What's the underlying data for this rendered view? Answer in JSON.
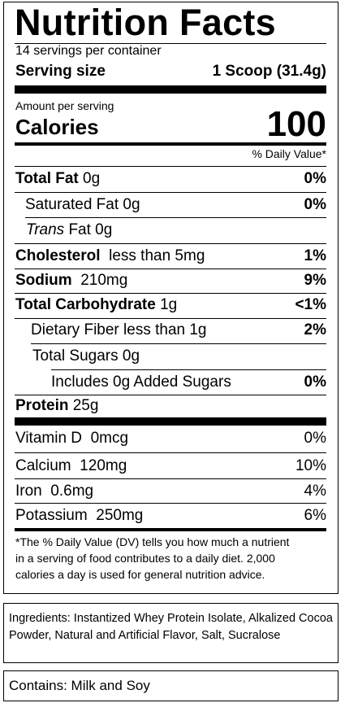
{
  "title": "Nutrition Facts",
  "servings": "14 servings per container",
  "serving_size": {
    "label": "Serving size",
    "value": "1 Scoop (31.4g)"
  },
  "amount_per_serving": "Amount per serving",
  "calories": {
    "label": "Calories",
    "value": "100"
  },
  "dv_header": "% Daily Value*",
  "nutrients": {
    "total_fat": {
      "label": "Total Fat",
      "amount": "0g",
      "dv": "0%"
    },
    "saturated_fat": {
      "label": "Saturated Fat 0g",
      "dv": "0%"
    },
    "trans_fat": {
      "italic": "Trans",
      "rest": " Fat 0g"
    },
    "cholesterol": {
      "label": "Cholesterol",
      "amount": "less than 5mg",
      "dv": "1%"
    },
    "sodium": {
      "label": "Sodium",
      "amount": "210mg",
      "dv": "9%"
    },
    "total_carb": {
      "label": "Total Carbohydrate",
      "amount": "1g",
      "dv": "<1%"
    },
    "fiber": {
      "label": "Dietary Fiber less than 1g",
      "dv": "2%"
    },
    "total_sugars": {
      "label": "Total Sugars 0g"
    },
    "added_sugars": {
      "label": "Includes 0g Added Sugars",
      "dv": "0%"
    },
    "protein": {
      "label": "Protein",
      "amount": "25g"
    }
  },
  "vitamins": {
    "vitamin_d": {
      "label": "Vitamin D  0mcg",
      "dv": "0%"
    },
    "calcium": {
      "label": "Calcium  120mg",
      "dv": "10%"
    },
    "iron": {
      "label": "Iron  0.6mg",
      "dv": "4%"
    },
    "potassium": {
      "label": "Potassium  250mg",
      "dv": "6%"
    }
  },
  "footnote": {
    "line1": "*The % Daily Value (DV) tells you how much a nutrient",
    "line2": "in a serving of food contributes to a daily diet. 2,000",
    "line3": "calories a day is used for general nutrition advice."
  },
  "ingredients": "Ingredients: Instantized Whey Protein Isolate, Alkalized Cocoa Powder, Natural and Artificial Flavor, Salt, Sucralose",
  "contains": "Contains: Milk and Soy"
}
